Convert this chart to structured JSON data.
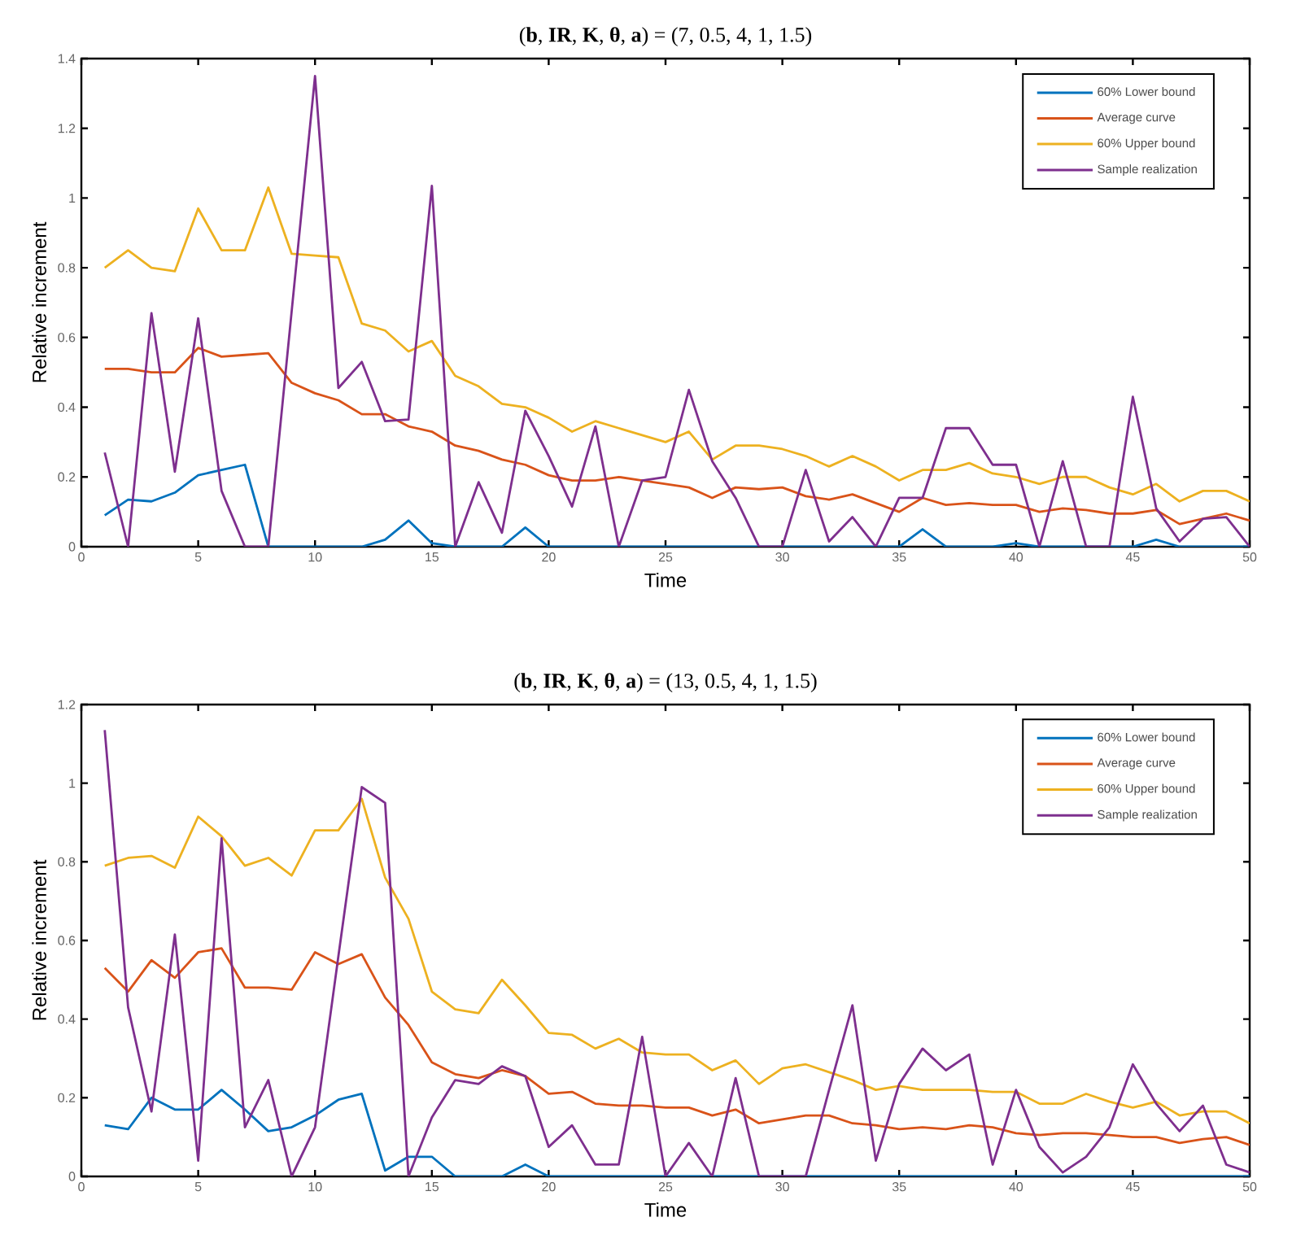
{
  "chart_data": [
    {
      "type": "line",
      "title": "(**b**, **IR**, **K**, **θ**, **a**) = (7, 0.5, 4, 1, 1.5)",
      "xlabel": "Time",
      "ylabel": "Relative increment",
      "x": [
        1,
        2,
        3,
        4,
        5,
        6,
        7,
        8,
        9,
        10,
        11,
        12,
        13,
        14,
        15,
        16,
        17,
        18,
        19,
        20,
        21,
        22,
        23,
        24,
        25,
        26,
        27,
        28,
        29,
        30,
        31,
        32,
        33,
        34,
        35,
        36,
        37,
        38,
        39,
        40,
        41,
        42,
        43,
        44,
        45,
        46,
        47,
        48,
        49,
        50
      ],
      "series": [
        {
          "name": "60% Lower bound",
          "color": "#0072bd",
          "values": [
            0.09,
            0.135,
            0.13,
            0.155,
            0.205,
            0.22,
            0.235,
            0,
            0,
            0,
            0,
            0,
            0.02,
            0.075,
            0.01,
            0,
            0,
            0,
            0.055,
            0,
            0,
            0,
            0,
            0,
            0,
            0,
            0,
            0,
            0,
            0,
            0,
            0,
            0,
            0,
            0,
            0.05,
            0,
            0,
            0,
            0.01,
            0,
            0,
            0,
            0,
            0,
            0.02,
            0,
            0,
            0,
            0
          ]
        },
        {
          "name": "Average curve",
          "color": "#d95319",
          "values": [
            0.51,
            0.51,
            0.5,
            0.5,
            0.57,
            0.545,
            0.55,
            0.555,
            0.47,
            0.44,
            0.42,
            0.38,
            0.38,
            0.345,
            0.33,
            0.29,
            0.275,
            0.25,
            0.235,
            0.205,
            0.19,
            0.19,
            0.2,
            0.19,
            0.18,
            0.17,
            0.14,
            0.17,
            0.165,
            0.17,
            0.145,
            0.135,
            0.15,
            0.125,
            0.1,
            0.14,
            0.12,
            0.125,
            0.12,
            0.12,
            0.1,
            0.11,
            0.105,
            0.095,
            0.095,
            0.105,
            0.065,
            0.08,
            0.095,
            0.075
          ]
        },
        {
          "name": "60% Upper bound",
          "color": "#edb120",
          "values": [
            0.8,
            0.85,
            0.8,
            0.79,
            0.97,
            0.85,
            0.85,
            1.03,
            0.84,
            0.835,
            0.83,
            0.64,
            0.62,
            0.56,
            0.59,
            0.49,
            0.46,
            0.41,
            0.4,
            0.37,
            0.33,
            0.36,
            0.34,
            0.32,
            0.3,
            0.33,
            0.25,
            0.29,
            0.29,
            0.28,
            0.26,
            0.23,
            0.26,
            0.23,
            0.19,
            0.22,
            0.22,
            0.24,
            0.21,
            0.2,
            0.18,
            0.2,
            0.2,
            0.17,
            0.15,
            0.18,
            0.13,
            0.16,
            0.16,
            0.13
          ]
        },
        {
          "name": "Sample realization",
          "color": "#7e2f8e",
          "values": [
            0.27,
            0,
            0.67,
            0.215,
            0.655,
            0.16,
            0,
            0,
            0.675,
            1.35,
            0.455,
            0.53,
            0.36,
            0.365,
            1.035,
            0,
            0.185,
            0.04,
            0.39,
            0.26,
            0.115,
            0.345,
            0,
            0.19,
            0.2,
            0.45,
            0.245,
            0.14,
            0,
            0,
            0.22,
            0.015,
            0.085,
            0,
            0.14,
            0.14,
            0.34,
            0.34,
            0.235,
            0.235,
            0,
            0.245,
            0,
            0,
            0.43,
            0.11,
            0.015,
            0.08,
            0.085,
            0
          ]
        }
      ],
      "xlim": [
        0,
        50
      ],
      "ylim": [
        0,
        1.4
      ],
      "xticks": [
        0,
        5,
        10,
        15,
        20,
        25,
        30,
        35,
        40,
        45,
        50
      ],
      "yticks": [
        0,
        0.2,
        0.4,
        0.6,
        0.8,
        1,
        1.2,
        1.4
      ],
      "grid": false,
      "legend": "top right",
      "line_style": "solid"
    },
    {
      "type": "line",
      "title": "(**b**, **IR**, **K**, **θ**, **a**) = (13, 0.5, 4, 1, 1.5)",
      "xlabel": "Time",
      "ylabel": "Relative increment",
      "x": [
        1,
        2,
        3,
        4,
        5,
        6,
        7,
        8,
        9,
        10,
        11,
        12,
        13,
        14,
        15,
        16,
        17,
        18,
        19,
        20,
        21,
        22,
        23,
        24,
        25,
        26,
        27,
        28,
        29,
        30,
        31,
        32,
        33,
        34,
        35,
        36,
        37,
        38,
        39,
        40,
        41,
        42,
        43,
        44,
        45,
        46,
        47,
        48,
        49,
        50
      ],
      "series": [
        {
          "name": "60% Lower bound",
          "color": "#0072bd",
          "values": [
            0.13,
            0.12,
            0.2,
            0.17,
            0.17,
            0.22,
            0.17,
            0.115,
            0.125,
            0.155,
            0.195,
            0.21,
            0.015,
            0.05,
            0.05,
            0,
            0,
            0,
            0.03,
            0,
            0,
            0,
            0,
            0,
            0,
            0,
            0,
            0,
            0,
            0,
            0,
            0,
            0,
            0,
            0,
            0,
            0,
            0,
            0,
            0,
            0,
            0,
            0,
            0,
            0,
            0,
            0,
            0,
            0,
            0
          ]
        },
        {
          "name": "Average curve",
          "color": "#d95319",
          "values": [
            0.53,
            0.47,
            0.55,
            0.505,
            0.57,
            0.58,
            0.48,
            0.48,
            0.475,
            0.57,
            0.54,
            0.565,
            0.455,
            0.385,
            0.29,
            0.26,
            0.25,
            0.27,
            0.255,
            0.21,
            0.215,
            0.185,
            0.18,
            0.18,
            0.175,
            0.175,
            0.155,
            0.17,
            0.135,
            0.145,
            0.155,
            0.155,
            0.135,
            0.13,
            0.12,
            0.125,
            0.12,
            0.13,
            0.125,
            0.11,
            0.105,
            0.11,
            0.11,
            0.105,
            0.1,
            0.1,
            0.085,
            0.095,
            0.1,
            0.08
          ]
        },
        {
          "name": "60% Upper bound",
          "color": "#edb120",
          "values": [
            0.79,
            0.81,
            0.815,
            0.785,
            0.915,
            0.865,
            0.79,
            0.81,
            0.765,
            0.88,
            0.88,
            0.96,
            0.76,
            0.655,
            0.47,
            0.425,
            0.415,
            0.5,
            0.435,
            0.365,
            0.36,
            0.325,
            0.35,
            0.315,
            0.31,
            0.31,
            0.27,
            0.295,
            0.235,
            0.275,
            0.285,
            0.265,
            0.245,
            0.22,
            0.23,
            0.22,
            0.22,
            0.22,
            0.215,
            0.215,
            0.185,
            0.185,
            0.21,
            0.19,
            0.175,
            0.19,
            0.155,
            0.165,
            0.165,
            0.135
          ]
        },
        {
          "name": "Sample realization",
          "color": "#7e2f8e",
          "values": [
            1.135,
            0.43,
            0.165,
            0.615,
            0.04,
            0.86,
            0.125,
            0.245,
            0,
            0.125,
            0.56,
            0.99,
            0.95,
            0,
            0.15,
            0.245,
            0.235,
            0.28,
            0.255,
            0.075,
            0.13,
            0.03,
            0.03,
            0.355,
            0,
            0.085,
            0,
            0.25,
            0,
            0,
            0,
            0.22,
            0.435,
            0.04,
            0.235,
            0.325,
            0.27,
            0.31,
            0.03,
            0.22,
            0.075,
            0.01,
            0.05,
            0.125,
            0.285,
            0.185,
            0.115,
            0.18,
            0.03,
            0.01
          ]
        }
      ],
      "xlim": [
        0,
        50
      ],
      "ylim": [
        0,
        1.2
      ],
      "xticks": [
        0,
        5,
        10,
        15,
        20,
        25,
        30,
        35,
        40,
        45,
        50
      ],
      "yticks": [
        0,
        0.2,
        0.4,
        0.6,
        0.8,
        1,
        1.2
      ],
      "grid": false,
      "legend": "top right",
      "line_style": "solid"
    }
  ]
}
